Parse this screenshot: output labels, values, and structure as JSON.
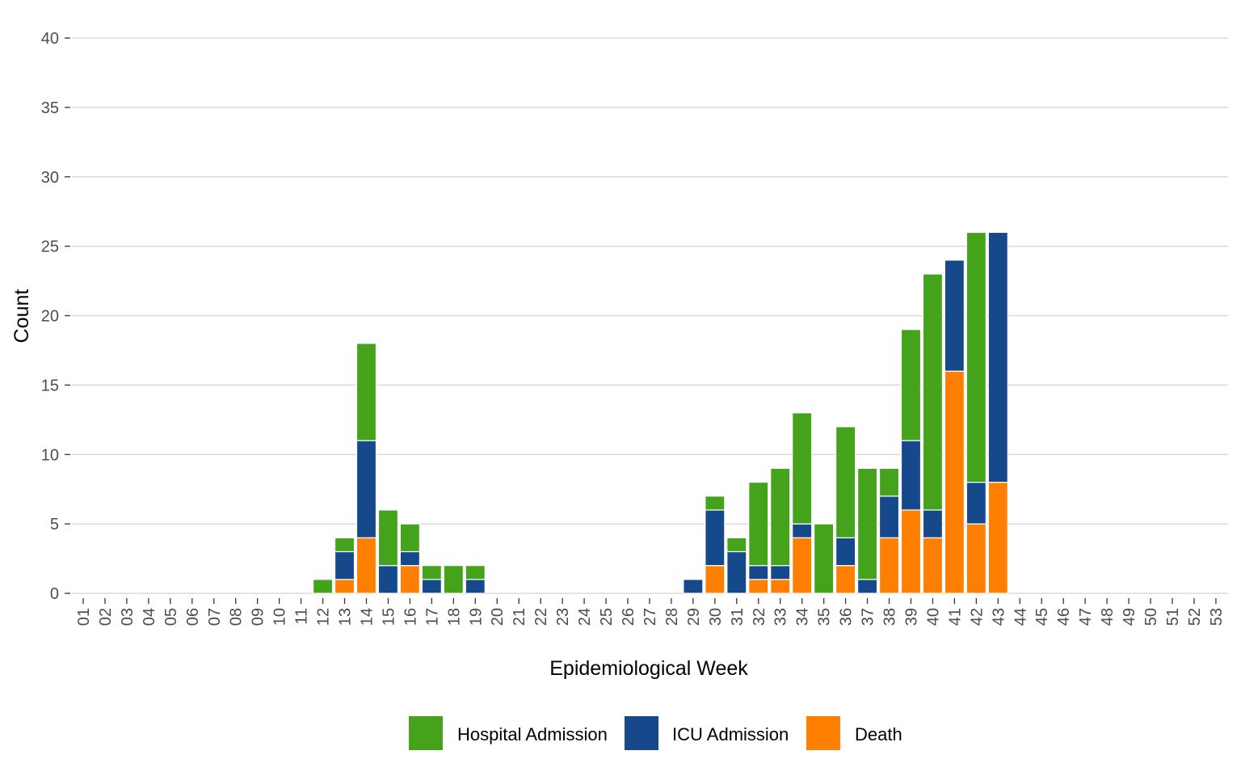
{
  "chart_data": {
    "type": "bar",
    "stacked": true,
    "xlabel": "Epidemiological Week",
    "ylabel": "Count",
    "ylim": [
      0,
      40
    ],
    "yticks": [
      0,
      5,
      10,
      15,
      20,
      25,
      30,
      35,
      40
    ],
    "grid": "horizontal",
    "legend_position": "bottom",
    "categories": [
      "01",
      "02",
      "03",
      "04",
      "05",
      "06",
      "07",
      "08",
      "09",
      "10",
      "11",
      "12",
      "13",
      "14",
      "15",
      "16",
      "17",
      "18",
      "19",
      "20",
      "21",
      "22",
      "23",
      "24",
      "25",
      "26",
      "27",
      "28",
      "29",
      "30",
      "31",
      "32",
      "33",
      "34",
      "35",
      "36",
      "37",
      "38",
      "39",
      "40",
      "41",
      "42",
      "43",
      "44",
      "45",
      "46",
      "47",
      "48",
      "49",
      "50",
      "51",
      "52",
      "53"
    ],
    "series": [
      {
        "name": "Death",
        "color": "#ff7f00",
        "values": [
          0,
          0,
          0,
          0,
          0,
          0,
          0,
          0,
          0,
          0,
          0,
          0,
          1,
          4,
          0,
          2,
          0,
          0,
          0,
          0,
          0,
          0,
          0,
          0,
          0,
          0,
          0,
          0,
          0,
          2,
          0,
          1,
          1,
          4,
          0,
          2,
          0,
          4,
          6,
          4,
          16,
          5,
          8,
          0,
          0,
          0,
          0,
          0,
          0,
          0,
          0,
          0,
          0
        ]
      },
      {
        "name": "ICU Admission",
        "color": "#15498b",
        "values": [
          0,
          0,
          0,
          0,
          0,
          0,
          0,
          0,
          0,
          0,
          0,
          0,
          2,
          7,
          2,
          1,
          1,
          0,
          1,
          0,
          0,
          0,
          0,
          0,
          0,
          0,
          0,
          0,
          1,
          4,
          3,
          1,
          1,
          1,
          0,
          2,
          1,
          3,
          5,
          2,
          8,
          3,
          18,
          0,
          0,
          0,
          0,
          0,
          0,
          0,
          0,
          0,
          0
        ]
      },
      {
        "name": "Hospital Admission",
        "color": "#44a31a",
        "values": [
          0,
          0,
          0,
          0,
          0,
          0,
          0,
          0,
          0,
          0,
          0,
          1,
          1,
          7,
          4,
          2,
          1,
          2,
          1,
          0,
          0,
          0,
          0,
          0,
          0,
          0,
          0,
          0,
          0,
          1,
          1,
          6,
          7,
          8,
          5,
          8,
          8,
          2,
          8,
          17,
          0,
          18,
          0,
          0,
          0,
          0,
          0,
          0,
          0,
          0,
          0,
          0,
          0
        ]
      }
    ],
    "legend_order": [
      "Hospital Admission",
      "ICU Admission",
      "Death"
    ]
  }
}
